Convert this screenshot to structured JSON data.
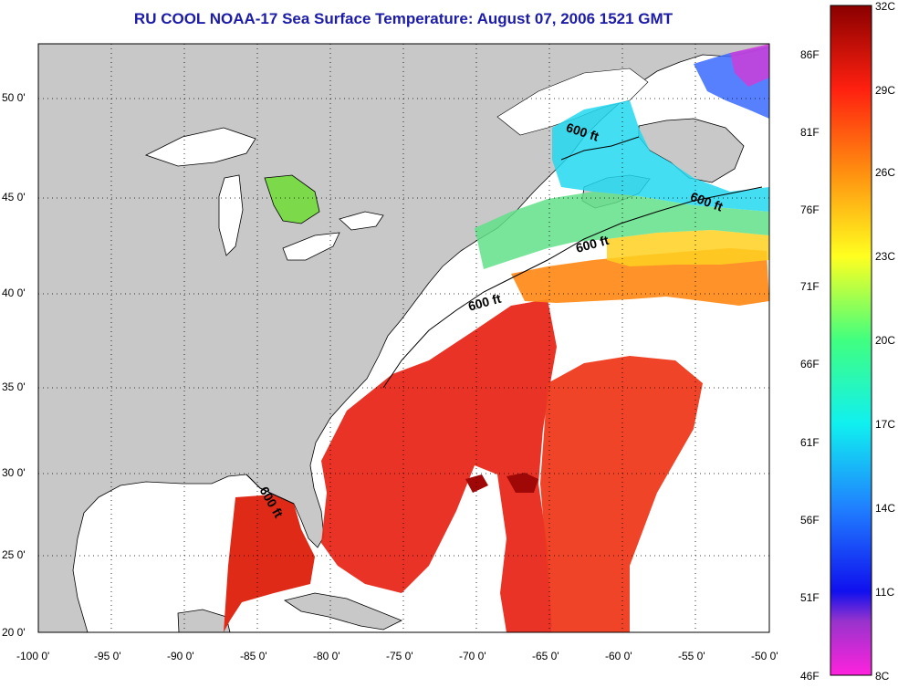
{
  "title": "RU COOL  NOAA-17  Sea Surface Temperature:  August 07, 2006 1521 GMT",
  "map": {
    "lon_range": [
      -100,
      -50
    ],
    "lat_range": [
      20,
      52
    ],
    "x_ticks": [
      "-100 0'",
      "-95 0'",
      "-90 0'",
      "-85 0'",
      "-80 0'",
      "-75 0'",
      "-70 0'",
      "-65 0'",
      "-60 0'",
      "-55 0'",
      "-50 0'"
    ],
    "y_ticks": [
      "50 0'",
      "45 0'",
      "40 0'",
      "35 0'",
      "30 0'",
      "25 0'",
      "20 0'"
    ],
    "contour_label": "600 ft",
    "land_color": "#c8c8c8",
    "no_data_color": "#ffffff"
  },
  "colorbar": {
    "celsius_labels": [
      "32C",
      "29C",
      "26C",
      "23C",
      "20C",
      "17C",
      "14C",
      "11C",
      "8C"
    ],
    "fahrenheit_labels": [
      "86F",
      "81F",
      "76F",
      "71F",
      "66F",
      "61F",
      "56F",
      "51F",
      "46F"
    ],
    "range_c": [
      8,
      32
    ],
    "range_f": [
      46,
      90
    ]
  }
}
